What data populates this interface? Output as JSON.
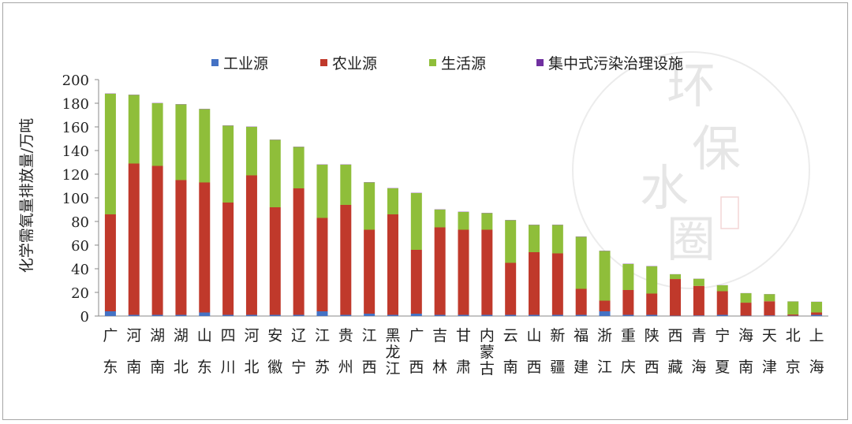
{
  "chart_data": {
    "type": "bar",
    "stacked": true,
    "ylabel": "化学需氧量排放量/万吨",
    "ylim": [
      0,
      200
    ],
    "yticks": [
      0,
      20,
      40,
      60,
      80,
      100,
      120,
      140,
      160,
      180,
      200
    ],
    "legend_position": "top",
    "categories": [
      "广东",
      "河南",
      "湖南",
      "湖北",
      "山东",
      "四川",
      "河北",
      "安徽",
      "辽宁",
      "江苏",
      "贵州",
      "江西",
      "黑龙江",
      "广西",
      "吉林",
      "甘肃",
      "内蒙古",
      "云南",
      "山西",
      "新疆",
      "福建",
      "浙江",
      "重庆",
      "陕西",
      "西藏",
      "青海",
      "宁夏",
      "海南",
      "天津",
      "北京",
      "上海"
    ],
    "series": [
      {
        "name": "工业源",
        "color": "#4472c4",
        "values": [
          4,
          1,
          1,
          1,
          3,
          1,
          1,
          1,
          1,
          4,
          1,
          2,
          1,
          2,
          1,
          1,
          1,
          1,
          1,
          1,
          1,
          4,
          1,
          1,
          0.3,
          0.5,
          1,
          0.3,
          0.5,
          0.3,
          1
        ]
      },
      {
        "name": "农业源",
        "color": "#c0392b",
        "values": [
          82,
          128,
          126,
          114,
          110,
          95,
          118,
          91,
          107,
          79,
          93,
          71,
          85,
          54,
          74,
          72,
          72,
          44,
          53,
          52,
          22,
          9,
          21,
          18,
          31,
          25,
          20,
          11,
          12,
          1,
          2
        ]
      },
      {
        "name": "生活源",
        "color": "#8fbe3a",
        "values": [
          102,
          58,
          53,
          64,
          62,
          65,
          41,
          57,
          35,
          45,
          34,
          40,
          22,
          48,
          15,
          15,
          14,
          36,
          23,
          24,
          44,
          42,
          22,
          23,
          4,
          6,
          5,
          8,
          6,
          11,
          9
        ]
      },
      {
        "name": "集中式污染治理设施",
        "color": "#7030a0",
        "values": [
          0.2,
          0.2,
          0.2,
          0.2,
          0.2,
          0.2,
          0.2,
          0.2,
          0.2,
          0.2,
          0.2,
          0.2,
          0.2,
          0.2,
          0.2,
          0.2,
          0.2,
          0.2,
          0.2,
          0.2,
          0.2,
          0.2,
          0.2,
          0.2,
          0.1,
          0.1,
          0.1,
          0.1,
          0.1,
          0.1,
          0.1
        ]
      }
    ]
  },
  "watermark": {
    "text": "环保水圈",
    "seal": "水圈"
  }
}
